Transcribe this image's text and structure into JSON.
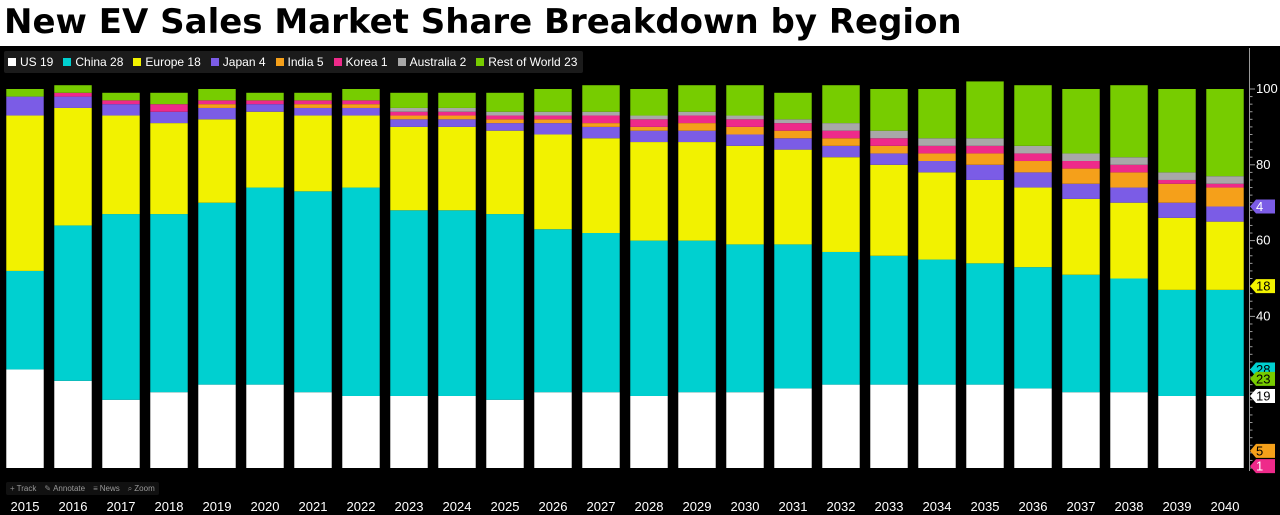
{
  "title": "New EV Sales Market Share Breakdown by Region",
  "legend": [
    {
      "label": "US 19",
      "color": "#ffffff"
    },
    {
      "label": "China 28",
      "color": "#00d0d0"
    },
    {
      "label": "Europe 18",
      "color": "#f2f200"
    },
    {
      "label": "Japan 4",
      "color": "#7b5ce6"
    },
    {
      "label": "India 5",
      "color": "#f5a01a"
    },
    {
      "label": "Korea 1",
      "color": "#ee2a8a"
    },
    {
      "label": "Australia 2",
      "color": "#a8a8a8"
    },
    {
      "label": "Rest of World 23",
      "color": "#77cc00"
    }
  ],
  "toolbar": [
    {
      "label": "Track",
      "icon": "crosshair-icon",
      "glyph": "+"
    },
    {
      "label": "Annotate",
      "icon": "pencil-icon",
      "glyph": "✎"
    },
    {
      "label": "News",
      "icon": "news-icon",
      "glyph": "≡"
    },
    {
      "label": "Zoom",
      "icon": "zoom-icon",
      "glyph": "⌕"
    }
  ],
  "chart_data": {
    "type": "bar",
    "stacked": true,
    "categories": [
      "2015",
      "2016",
      "2017",
      "2018",
      "2019",
      "2020",
      "2021",
      "2022",
      "2023",
      "2024",
      "2025",
      "2026",
      "2027",
      "2028",
      "2029",
      "2030",
      "2031",
      "2032",
      "2033",
      "2034",
      "2035",
      "2036",
      "2037",
      "2038",
      "2039",
      "2040"
    ],
    "series": [
      {
        "name": "US",
        "color": "#ffffff",
        "values": [
          26,
          23,
          18,
          20,
          22,
          22,
          20,
          19,
          19,
          19,
          18,
          20,
          20,
          19,
          20,
          20,
          21,
          22,
          22,
          22,
          22,
          21,
          20,
          20,
          19,
          19
        ]
      },
      {
        "name": "China",
        "color": "#00d0d0",
        "values": [
          26,
          41,
          49,
          47,
          48,
          52,
          53,
          55,
          49,
          49,
          49,
          43,
          42,
          41,
          40,
          39,
          38,
          35,
          34,
          33,
          32,
          32,
          31,
          30,
          28,
          28
        ]
      },
      {
        "name": "Europe",
        "color": "#f2f200",
        "values": [
          41,
          31,
          26,
          24,
          22,
          20,
          20,
          19,
          22,
          22,
          22,
          25,
          25,
          26,
          26,
          26,
          25,
          25,
          24,
          23,
          22,
          21,
          20,
          20,
          19,
          18
        ]
      },
      {
        "name": "Japan",
        "color": "#7b5ce6",
        "values": [
          5,
          3,
          3,
          3,
          3,
          2,
          2,
          2,
          2,
          2,
          2,
          3,
          3,
          3,
          3,
          3,
          3,
          3,
          3,
          3,
          4,
          4,
          4,
          4,
          4,
          4
        ]
      },
      {
        "name": "India",
        "color": "#f5a01a",
        "values": [
          0,
          0,
          0,
          0,
          1,
          0,
          1,
          1,
          1,
          1,
          1,
          1,
          1,
          1,
          2,
          2,
          2,
          2,
          2,
          2,
          3,
          3,
          4,
          4,
          5,
          5
        ]
      },
      {
        "name": "Korea",
        "color": "#ee2a8a",
        "values": [
          0,
          1,
          1,
          2,
          1,
          1,
          1,
          1,
          1,
          1,
          1,
          1,
          2,
          2,
          2,
          2,
          2,
          2,
          2,
          2,
          2,
          2,
          2,
          2,
          1,
          1
        ]
      },
      {
        "name": "Australia",
        "color": "#a8a8a8",
        "values": [
          0,
          0,
          0,
          0,
          0,
          0,
          0,
          0,
          1,
          1,
          1,
          1,
          1,
          1,
          1,
          1,
          1,
          2,
          2,
          2,
          2,
          2,
          2,
          2,
          2,
          2
        ]
      },
      {
        "name": "Rest of World",
        "color": "#77cc00",
        "values": [
          2,
          2,
          2,
          3,
          3,
          2,
          2,
          3,
          4,
          4,
          5,
          6,
          7,
          7,
          7,
          8,
          7,
          10,
          11,
          13,
          15,
          16,
          17,
          19,
          22,
          23
        ]
      }
    ],
    "ylim": [
      0,
      100
    ],
    "yticks": [
      40,
      60,
      80,
      100
    ],
    "right_axis_tags": [
      {
        "value": 4,
        "color": "#7b5ce6",
        "text_color": "#ffffff"
      },
      {
        "value": 28,
        "color": "#00d0d0",
        "text_color": "#000000"
      },
      {
        "value": 18,
        "color": "#f2f200",
        "text_color": "#000000"
      },
      {
        "value": 23,
        "color": "#77cc00",
        "text_color": "#000000"
      },
      {
        "value": 19,
        "color": "#ffffff",
        "text_color": "#000000"
      },
      {
        "value": 5,
        "color": "#f5a01a",
        "text_color": "#000000"
      },
      {
        "value": 1,
        "color": "#ee2a8a",
        "text_color": "#ffffff"
      }
    ],
    "grid": false,
    "legend_position": "top-left"
  }
}
